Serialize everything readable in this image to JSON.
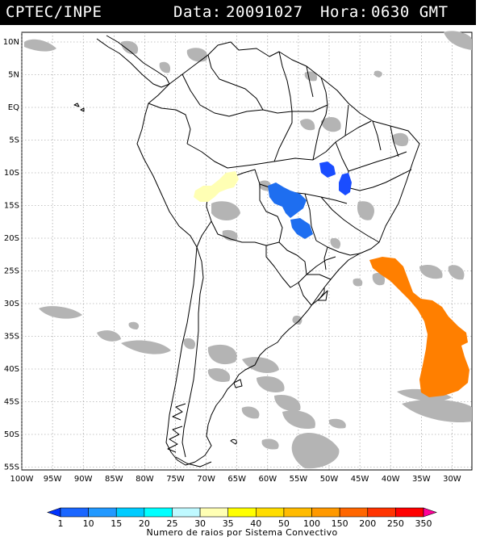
{
  "header": {
    "source": "CPTEC/INPE",
    "date_label": "Data:",
    "date_value": "20091027",
    "time_label": "Hora:",
    "time_value": "0630 GMT"
  },
  "map": {
    "lat_labels": [
      "10N",
      "5N",
      "EQ",
      "5S",
      "10S",
      "15S",
      "20S",
      "25S",
      "30S",
      "35S",
      "40S",
      "45S",
      "50S",
      "55S"
    ],
    "lon_labels": [
      "100W",
      "95W",
      "90W",
      "85W",
      "80W",
      "75W",
      "70W",
      "65W",
      "60W",
      "55W",
      "50W",
      "45W",
      "40W",
      "35W",
      "30W"
    ],
    "grid": true,
    "background_colors": {
      "satellite_cloud": "#b4b4b4",
      "land": "#ffffff",
      "outline": "#000000"
    }
  },
  "colorbar": {
    "title": "Numero de raios por Sistema Convectivo",
    "ticks": [
      "1",
      "10",
      "15",
      "20",
      "25",
      "30",
      "35",
      "40",
      "50",
      "100",
      "150",
      "200",
      "250",
      "350"
    ],
    "colors": [
      "#0033ff",
      "#1a66ff",
      "#2299ff",
      "#00ccff",
      "#00ffff",
      "#bff9ff",
      "#ffffb4",
      "#ffff00",
      "#ffdd00",
      "#ffbb00",
      "#ff9900",
      "#ff6600",
      "#ff3300",
      "#ff0000",
      "#ff0099"
    ]
  },
  "features": [
    {
      "name": "convective-system-parana-bahia",
      "color": "#1a4dff"
    },
    {
      "name": "convective-system-mato-grosso",
      "color": "#1e6ef0"
    },
    {
      "name": "convective-system-peru-bolivia",
      "color": "#ffffb4"
    },
    {
      "name": "convective-system-south-atlantic",
      "color": "#ff7f00"
    }
  ]
}
